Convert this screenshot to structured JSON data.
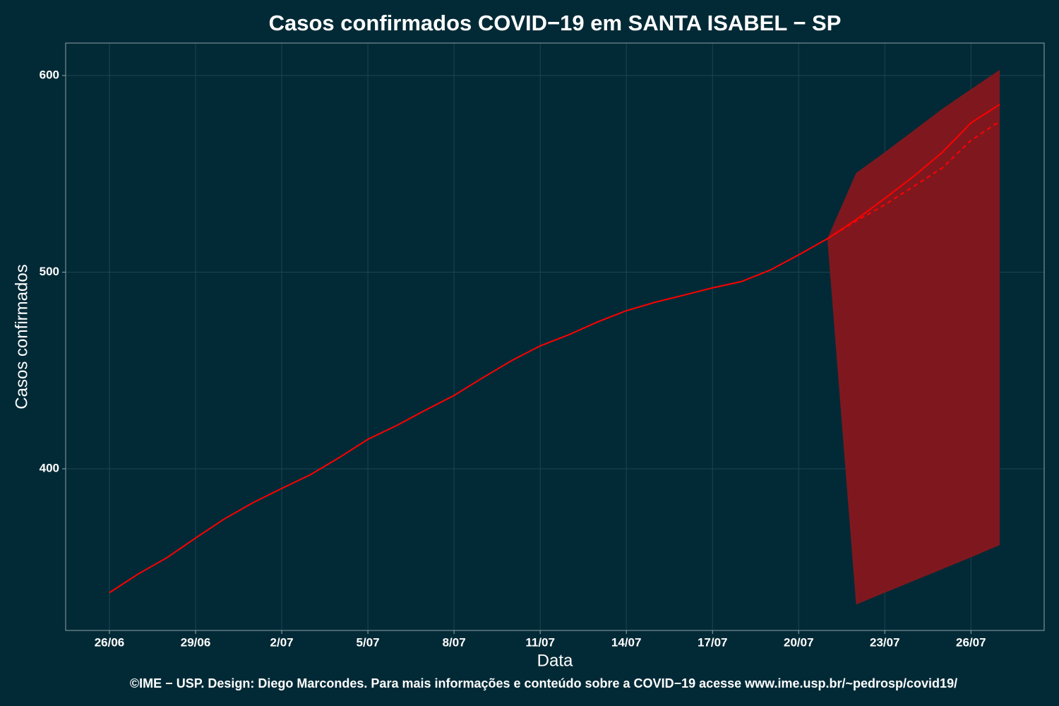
{
  "chart_data": {
    "type": "line",
    "title": "Casos confirmados COVID−19 em SANTA ISABEL − SP",
    "x_label": "Data",
    "y_label": "Casos confirmados",
    "caption": "©IME − USP. Design: Diego Marcondes. Para mais informações e conteúdo sobre a COVID−19 acesse www.ime.usp.br/~pedrosp/covid19/",
    "categories": [
      "26/06",
      null,
      null,
      "29/06",
      null,
      null,
      "2/07",
      null,
      null,
      "5/07",
      null,
      null,
      "8/07",
      null,
      null,
      "11/07",
      null,
      null,
      "14/07",
      null,
      null,
      "17/07",
      null,
      null,
      "20/07",
      null,
      null,
      "23/07",
      null,
      null,
      "26/07",
      null
    ],
    "series": [
      {
        "color": "#ff0000",
        "dashed": false,
        "values": [
          337,
          346.5,
          354.8,
          364.8,
          374.5,
          382.8,
          390,
          397,
          405.7,
          415,
          422,
          429.8,
          437.3,
          446.3,
          455,
          462.5,
          468.2,
          474.7,
          480.4,
          484.7,
          488.3,
          492,
          495.2,
          501,
          508.8,
          517,
          526.7,
          537.5,
          548.7,
          560.9,
          575.9,
          585.3
        ]
      },
      {
        "color": "#ff0000",
        "dashed": true,
        "values": [
          null,
          null,
          null,
          null,
          null,
          null,
          null,
          null,
          null,
          null,
          null,
          null,
          null,
          null,
          null,
          null,
          null,
          null,
          null,
          null,
          null,
          null,
          null,
          null,
          null,
          517,
          526,
          534.3,
          543.6,
          553,
          567,
          576.7
        ]
      }
    ],
    "band": {
      "color": "#7f181e",
      "lower": [
        null,
        null,
        null,
        null,
        null,
        null,
        null,
        null,
        null,
        null,
        null,
        null,
        null,
        null,
        null,
        null,
        null,
        null,
        null,
        null,
        null,
        null,
        null,
        null,
        null,
        517,
        331,
        337,
        343,
        349,
        355,
        361.2
      ],
      "upper": [
        null,
        null,
        null,
        null,
        null,
        null,
        null,
        null,
        null,
        null,
        null,
        null,
        null,
        null,
        null,
        null,
        null,
        null,
        null,
        null,
        null,
        null,
        null,
        null,
        null,
        517,
        550.4,
        561,
        572,
        583,
        593,
        602.9
      ]
    },
    "ylim": [
      317.8,
      616.5
    ],
    "yticks": [
      400,
      500,
      600
    ],
    "grid": true
  }
}
